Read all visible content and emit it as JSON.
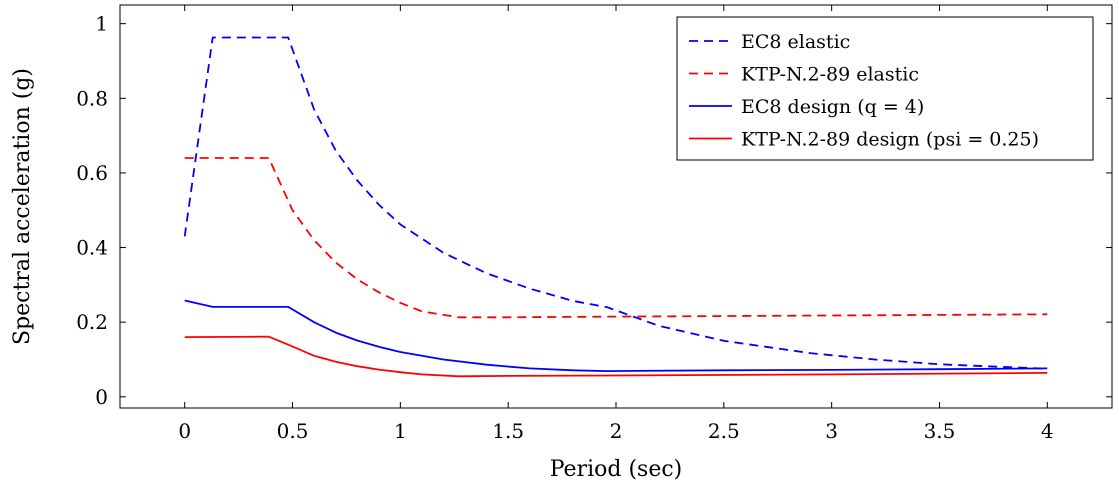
{
  "chart_data": {
    "type": "line",
    "xlabel": "Period (sec)",
    "ylabel": "Spectral acceleration (g)",
    "xlim": [
      -0.3,
      4.3
    ],
    "ylim": [
      -0.03,
      1.05
    ],
    "xticks": [
      0,
      0.5,
      1,
      1.5,
      2,
      2.5,
      3,
      3.5,
      4
    ],
    "xtick_labels": [
      "0",
      "0.5",
      "1",
      "1.5",
      "2",
      "2.5",
      "3",
      "3.5",
      "4"
    ],
    "yticks": [
      0,
      0.2,
      0.4,
      0.6,
      0.8,
      1
    ],
    "ytick_labels": [
      "0",
      "0.2",
      "0.4",
      "0.6",
      "0.8",
      "1"
    ],
    "grid": false,
    "legend_position": "top-right",
    "series": [
      {
        "name": "EC8 elastic",
        "color": "#0000ff",
        "dash": "dashed",
        "x": [
          0,
          0.13,
          0.48,
          0.6,
          0.7,
          0.8,
          0.9,
          1.0,
          1.2,
          1.4,
          1.6,
          1.8,
          1.96,
          2.2,
          2.5,
          2.9,
          3.2,
          3.5,
          4.0
        ],
        "y": [
          0.43,
          0.963,
          0.963,
          0.77,
          0.66,
          0.58,
          0.515,
          0.462,
          0.386,
          0.331,
          0.29,
          0.257,
          0.24,
          0.19,
          0.15,
          0.117,
          0.1,
          0.087,
          0.075
        ]
      },
      {
        "name": "KTP-N.2-89 elastic",
        "color": "#ff0000",
        "dash": "dashed",
        "x": [
          0,
          0.39,
          0.5,
          0.6,
          0.7,
          0.8,
          0.9,
          1.0,
          1.1,
          1.27,
          1.5,
          2.0,
          3.0,
          4.0
        ],
        "y": [
          0.64,
          0.64,
          0.5,
          0.42,
          0.36,
          0.315,
          0.28,
          0.252,
          0.229,
          0.213,
          0.213,
          0.215,
          0.218,
          0.221
        ]
      },
      {
        "name": "EC8 design (q = 4)",
        "color": "#0000ff",
        "dash": "solid",
        "x": [
          0,
          0.13,
          0.48,
          0.6,
          0.7,
          0.8,
          0.9,
          1.0,
          1.2,
          1.4,
          1.6,
          1.8,
          1.96,
          2.5,
          3.0,
          3.5,
          4.0
        ],
        "y": [
          0.258,
          0.241,
          0.241,
          0.2,
          0.172,
          0.151,
          0.134,
          0.12,
          0.1,
          0.086,
          0.076,
          0.071,
          0.069,
          0.071,
          0.072,
          0.074,
          0.076
        ]
      },
      {
        "name": "KTP-N.2-89 design (psi = 0.25)",
        "color": "#ff0000",
        "dash": "solid",
        "x": [
          0,
          0.39,
          0.5,
          0.6,
          0.7,
          0.8,
          0.9,
          1.0,
          1.1,
          1.27,
          1.5,
          2.0,
          3.0,
          4.0
        ],
        "y": [
          0.16,
          0.161,
          0.135,
          0.11,
          0.094,
          0.082,
          0.073,
          0.066,
          0.06,
          0.055,
          0.056,
          0.057,
          0.06,
          0.064
        ]
      }
    ]
  }
}
